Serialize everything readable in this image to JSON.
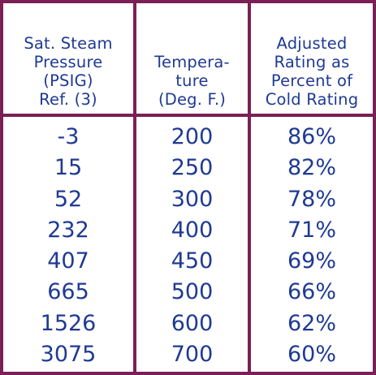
{
  "colors": {
    "border": "#7a2056",
    "text": "#1f3a93",
    "background": "#ffffff"
  },
  "table": {
    "headers": [
      "Sat. Steam\nPressure\n(PSIG)\nRef. (3)",
      "Tempera-\nture\n(Deg. F.)",
      "Adjusted\nRating as\nPercent of\nCold Rating"
    ],
    "columns": {
      "pressure": [
        "-3",
        "15",
        "52",
        "232",
        "407",
        "665",
        "1526",
        "3075"
      ],
      "temperature": [
        "200",
        "250",
        "300",
        "400",
        "450",
        "500",
        "600",
        "700"
      ],
      "rating": [
        "86%",
        "82%",
        "78%",
        "71%",
        "69%",
        "66%",
        "62%",
        "60%"
      ]
    }
  }
}
